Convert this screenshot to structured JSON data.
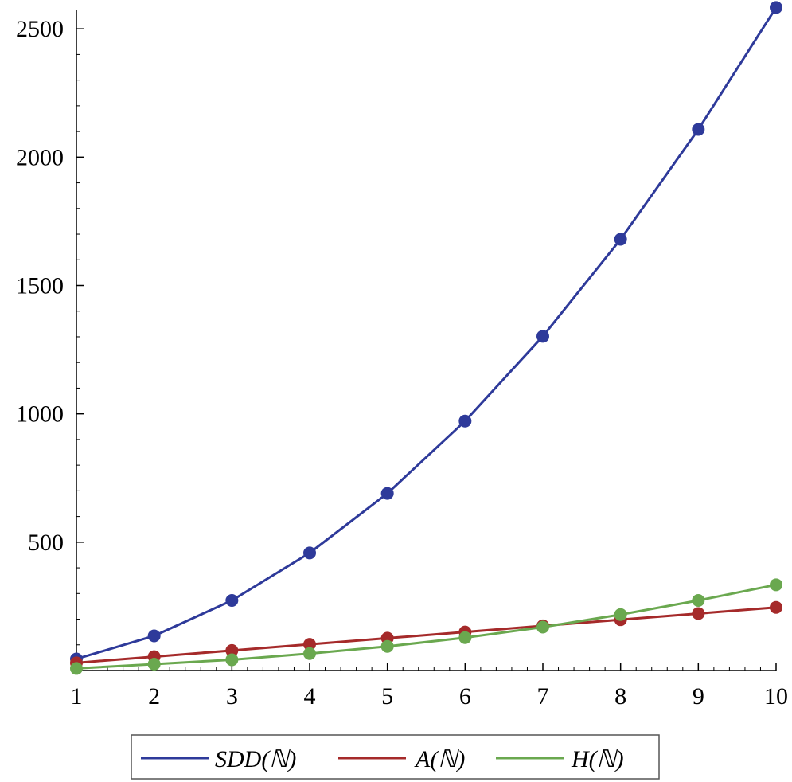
{
  "chart_data": {
    "type": "line",
    "title": "",
    "xlabel": "",
    "ylabel": "",
    "x": [
      1,
      2,
      3,
      4,
      5,
      6,
      7,
      8,
      9,
      10
    ],
    "xlim": [
      1,
      10
    ],
    "ylim": [
      0,
      2575
    ],
    "x_ticks": [
      1,
      2,
      3,
      4,
      5,
      6,
      7,
      8,
      9,
      10
    ],
    "y_ticks": [
      500,
      1000,
      1500,
      2000,
      2500
    ],
    "grid": false,
    "legend_position": "bottom",
    "series": [
      {
        "name": "SDD(ℕ)",
        "color": "#2e3a9a",
        "values": [
          45,
          135,
          273,
          458,
          690,
          972,
          1302,
          1680,
          2108,
          2583
        ]
      },
      {
        "name": "A(ℕ)",
        "color": "#a52a2a",
        "values": [
          30,
          54,
          78,
          102,
          126,
          150,
          174,
          198,
          222,
          246
        ]
      },
      {
        "name": "H(ℕ)",
        "color": "#6aa84f",
        "values": [
          8,
          25,
          42,
          66,
          94,
          128,
          169,
          218,
          273,
          334
        ]
      }
    ]
  }
}
